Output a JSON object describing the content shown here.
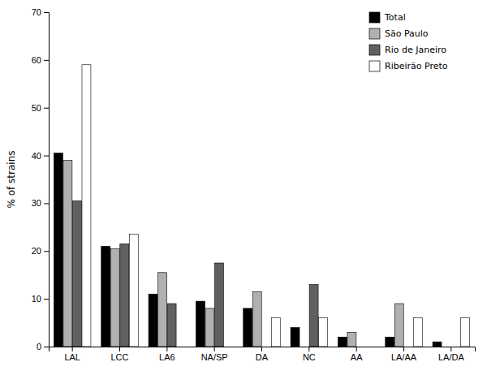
{
  "chart_data": {
    "type": "bar",
    "categories": [
      "LAL",
      "LCC",
      "LA6",
      "NA/SP",
      "DA",
      "NC",
      "AA",
      "LA/AA",
      "LA/DA"
    ],
    "series": [
      {
        "name": "Total",
        "color": "#000000",
        "values": [
          40.5,
          21.0,
          11.0,
          9.5,
          8.0,
          4.0,
          2.0,
          2.0,
          1.0
        ]
      },
      {
        "name": "São Paulo",
        "color": "#b0b0b0",
        "values": [
          39.0,
          20.5,
          15.5,
          8.0,
          11.5,
          0.0,
          3.0,
          9.0,
          0.0
        ]
      },
      {
        "name": "Rio de Janeiro",
        "color": "#606060",
        "values": [
          30.5,
          21.5,
          9.0,
          17.5,
          0.0,
          13.0,
          0.0,
          0.0,
          0.0
        ]
      },
      {
        "name": "Ribeirão Preto",
        "color": "#ffffff",
        "values": [
          59.0,
          23.5,
          0.0,
          0.0,
          6.0,
          6.0,
          0.0,
          6.0,
          6.0
        ]
      }
    ],
    "ylabel": "% of strains",
    "ylim": [
      0,
      70
    ],
    "yticks": [
      0,
      10,
      20,
      30,
      40,
      50,
      60,
      70
    ],
    "legend": "upper right"
  }
}
